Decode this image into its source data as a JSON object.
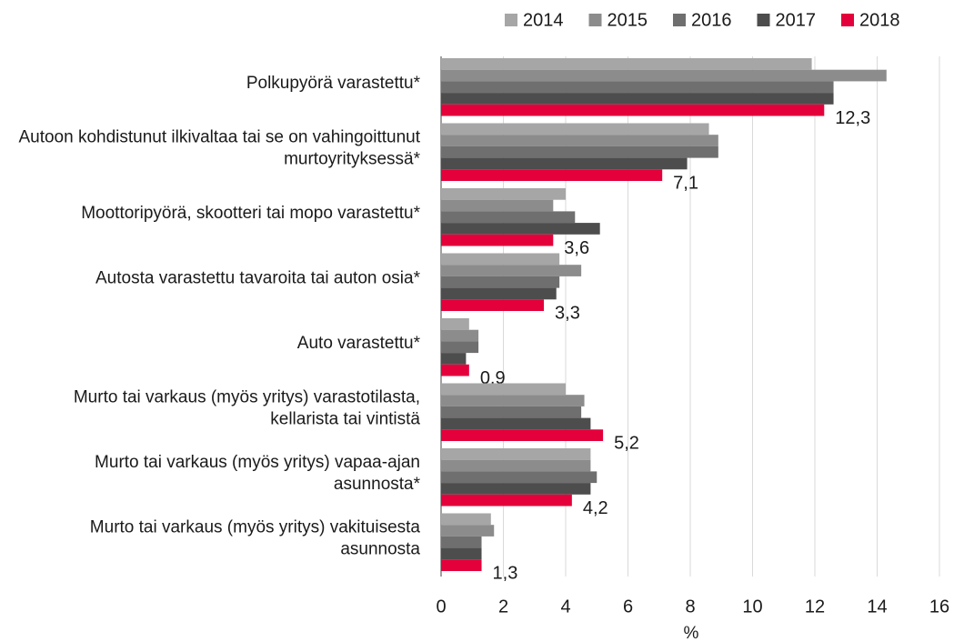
{
  "chart_data": {
    "type": "bar",
    "orientation": "horizontal",
    "categories": [
      "Polkupyörä varastettu*",
      "Autoon kohdistunut ilkivaltaa tai se on vahingoittunut murtoyrityksessä*",
      "Moottoripyörä, skootteri tai mopo varastettu*",
      "Autosta varastettu tavaroita tai auton osia*",
      "Auto varastettu*",
      "Murto tai varkaus (myös yritys) varastotilasta, kellarista tai vintistä",
      "Murto tai varkaus (myös yritys) vapaa-ajan asunnosta*",
      "Murto tai varkaus (myös yritys) vakituisesta asunnosta"
    ],
    "series": [
      {
        "name": "2014",
        "color": "#a6a6a6",
        "values": [
          11.9,
          8.6,
          4.0,
          3.8,
          0.9,
          4.0,
          4.8,
          1.6
        ]
      },
      {
        "name": "2015",
        "color": "#8c8c8c",
        "values": [
          14.3,
          8.9,
          3.6,
          4.5,
          1.2,
          4.6,
          4.8,
          1.7
        ]
      },
      {
        "name": "2016",
        "color": "#6f6f6f",
        "values": [
          12.6,
          8.9,
          4.3,
          3.8,
          1.2,
          4.5,
          5.0,
          1.3
        ]
      },
      {
        "name": "2017",
        "color": "#4d4d4d",
        "values": [
          12.6,
          7.9,
          5.1,
          3.7,
          0.8,
          4.8,
          4.8,
          1.3
        ]
      },
      {
        "name": "2018",
        "color": "#e4003b",
        "values": [
          12.3,
          7.1,
          3.6,
          3.3,
          0.9,
          5.2,
          4.2,
          1.3
        ],
        "value_labels": [
          "12,3",
          "7,1",
          "3,6",
          "3,3",
          "0,9",
          "5,2",
          "4,2",
          "1,3"
        ]
      }
    ],
    "xlabel": "%",
    "xlim": [
      0,
      16
    ],
    "xticks": [
      0,
      2,
      4,
      6,
      8,
      10,
      12,
      14,
      16
    ],
    "grid": true,
    "legend": "top"
  }
}
